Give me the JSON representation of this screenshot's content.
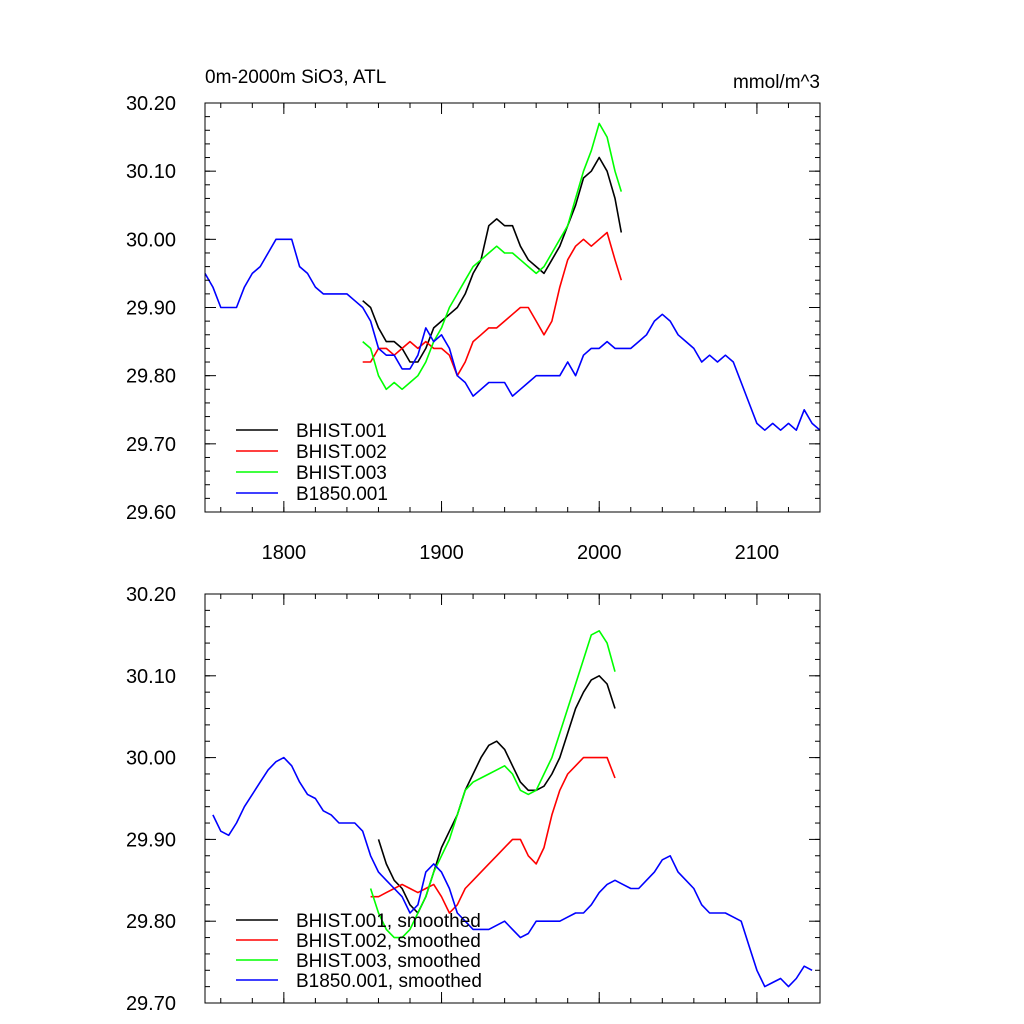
{
  "chart_data": [
    {
      "type": "line",
      "title_left": "0m-2000m SiO3, ATL",
      "title_right": "mmol/m^3",
      "xlim": [
        1750,
        2140
      ],
      "ylim": [
        29.6,
        30.2
      ],
      "x_ticks": [
        1800,
        1900,
        2000,
        2100
      ],
      "x_tick_labels": [
        "1800",
        "1900",
        "2000",
        "2100"
      ],
      "y_ticks": [
        29.6,
        29.7,
        29.8,
        29.9,
        30.0,
        30.1,
        30.2
      ],
      "y_tick_labels": [
        "29.60",
        "29.70",
        "29.80",
        "29.90",
        "30.00",
        "30.10",
        "30.20"
      ],
      "legend_position": "bottom-left",
      "series": [
        {
          "name": "BHIST.001",
          "color": "#000000",
          "x": [
            1850,
            1855,
            1860,
            1865,
            1870,
            1875,
            1880,
            1885,
            1890,
            1895,
            1900,
            1905,
            1910,
            1915,
            1920,
            1925,
            1930,
            1935,
            1940,
            1945,
            1950,
            1955,
            1960,
            1965,
            1970,
            1975,
            1980,
            1985,
            1990,
            1995,
            2000,
            2005,
            2010,
            2014
          ],
          "y": [
            29.91,
            29.9,
            29.87,
            29.85,
            29.85,
            29.84,
            29.82,
            29.82,
            29.84,
            29.87,
            29.88,
            29.89,
            29.9,
            29.92,
            29.95,
            29.97,
            30.02,
            30.03,
            30.02,
            30.02,
            29.99,
            29.97,
            29.96,
            29.95,
            29.97,
            29.99,
            30.02,
            30.05,
            30.09,
            30.1,
            30.12,
            30.1,
            30.06,
            30.01
          ]
        },
        {
          "name": "BHIST.002",
          "color": "#ff0000",
          "x": [
            1850,
            1855,
            1860,
            1865,
            1870,
            1875,
            1880,
            1885,
            1890,
            1895,
            1900,
            1905,
            1910,
            1915,
            1920,
            1925,
            1930,
            1935,
            1940,
            1945,
            1950,
            1955,
            1960,
            1965,
            1970,
            1975,
            1980,
            1985,
            1990,
            1995,
            2000,
            2005,
            2010,
            2014
          ],
          "y": [
            29.82,
            29.82,
            29.84,
            29.84,
            29.83,
            29.84,
            29.85,
            29.84,
            29.85,
            29.84,
            29.84,
            29.83,
            29.8,
            29.82,
            29.85,
            29.86,
            29.87,
            29.87,
            29.88,
            29.89,
            29.9,
            29.9,
            29.88,
            29.86,
            29.88,
            29.93,
            29.97,
            29.99,
            30.0,
            29.99,
            30.0,
            30.01,
            29.97,
            29.94
          ]
        },
        {
          "name": "BHIST.003",
          "color": "#00ff00",
          "x": [
            1850,
            1855,
            1860,
            1865,
            1870,
            1875,
            1880,
            1885,
            1890,
            1895,
            1900,
            1905,
            1910,
            1915,
            1920,
            1925,
            1930,
            1935,
            1940,
            1945,
            1950,
            1955,
            1960,
            1965,
            1970,
            1975,
            1980,
            1985,
            1990,
            1995,
            2000,
            2005,
            2010,
            2014
          ],
          "y": [
            29.85,
            29.84,
            29.8,
            29.78,
            29.79,
            29.78,
            29.79,
            29.8,
            29.82,
            29.85,
            29.87,
            29.9,
            29.92,
            29.94,
            29.96,
            29.97,
            29.98,
            29.99,
            29.98,
            29.98,
            29.97,
            29.96,
            29.95,
            29.96,
            29.98,
            30.0,
            30.02,
            30.06,
            30.1,
            30.13,
            30.17,
            30.15,
            30.1,
            30.07
          ]
        },
        {
          "name": "B1850.001",
          "color": "#0000ff",
          "x": [
            1750,
            1755,
            1760,
            1765,
            1770,
            1775,
            1780,
            1785,
            1790,
            1795,
            1800,
            1805,
            1810,
            1815,
            1820,
            1825,
            1830,
            1835,
            1840,
            1845,
            1850,
            1855,
            1860,
            1865,
            1870,
            1875,
            1880,
            1885,
            1890,
            1895,
            1900,
            1905,
            1910,
            1915,
            1920,
            1925,
            1930,
            1935,
            1940,
            1945,
            1950,
            1955,
            1960,
            1965,
            1970,
            1975,
            1980,
            1985,
            1990,
            1995,
            2000,
            2005,
            2010,
            2015,
            2020,
            2025,
            2030,
            2035,
            2040,
            2045,
            2050,
            2055,
            2060,
            2065,
            2070,
            2075,
            2080,
            2085,
            2090,
            2095,
            2100,
            2105,
            2110,
            2115,
            2120,
            2125,
            2130,
            2135,
            2140
          ],
          "y": [
            29.95,
            29.93,
            29.9,
            29.9,
            29.9,
            29.93,
            29.95,
            29.96,
            29.98,
            30.0,
            30.0,
            30.0,
            29.96,
            29.95,
            29.93,
            29.92,
            29.92,
            29.92,
            29.92,
            29.91,
            29.9,
            29.88,
            29.84,
            29.83,
            29.83,
            29.81,
            29.81,
            29.83,
            29.87,
            29.85,
            29.86,
            29.84,
            29.8,
            29.79,
            29.77,
            29.78,
            29.79,
            29.79,
            29.79,
            29.77,
            29.78,
            29.79,
            29.8,
            29.8,
            29.8,
            29.8,
            29.82,
            29.8,
            29.83,
            29.84,
            29.84,
            29.85,
            29.84,
            29.84,
            29.84,
            29.85,
            29.86,
            29.88,
            29.89,
            29.88,
            29.86,
            29.85,
            29.84,
            29.82,
            29.83,
            29.82,
            29.83,
            29.82,
            29.79,
            29.76,
            29.73,
            29.72,
            29.73,
            29.72,
            29.73,
            29.72,
            29.75,
            29.73,
            29.72
          ]
        }
      ]
    },
    {
      "type": "line",
      "xlim": [
        1750,
        2140
      ],
      "ylim": [
        29.7,
        30.2
      ],
      "x_ticks": [
        1800,
        1900,
        2000,
        2100
      ],
      "y_ticks": [
        29.7,
        29.8,
        29.9,
        30.0,
        30.1,
        30.2
      ],
      "y_tick_labels": [
        "29.70",
        "29.80",
        "29.90",
        "30.00",
        "30.10",
        "30.20"
      ],
      "legend_position": "bottom-left",
      "series": [
        {
          "name": "BHIST.001, smoothed",
          "color": "#000000",
          "x": [
            1860,
            1865,
            1870,
            1875,
            1880,
            1885,
            1890,
            1895,
            1900,
            1905,
            1910,
            1915,
            1920,
            1925,
            1930,
            1935,
            1940,
            1945,
            1950,
            1955,
            1960,
            1965,
            1970,
            1975,
            1980,
            1985,
            1990,
            1995,
            2000,
            2005,
            2010
          ],
          "y": [
            29.9,
            29.87,
            29.85,
            29.84,
            29.82,
            29.81,
            29.83,
            29.86,
            29.89,
            29.91,
            29.93,
            29.96,
            29.98,
            30.0,
            30.015,
            30.02,
            30.01,
            29.99,
            29.97,
            29.96,
            29.96,
            29.965,
            29.98,
            30.0,
            30.03,
            30.06,
            30.08,
            30.095,
            30.1,
            30.09,
            30.06
          ]
        },
        {
          "name": "BHIST.002, smoothed",
          "color": "#ff0000",
          "x": [
            1855,
            1860,
            1865,
            1870,
            1875,
            1880,
            1885,
            1890,
            1895,
            1900,
            1905,
            1910,
            1915,
            1920,
            1925,
            1930,
            1935,
            1940,
            1945,
            1950,
            1955,
            1960,
            1965,
            1970,
            1975,
            1980,
            1985,
            1990,
            1995,
            2000,
            2005,
            2010
          ],
          "y": [
            29.83,
            29.83,
            29.835,
            29.84,
            29.845,
            29.84,
            29.835,
            29.84,
            29.845,
            29.83,
            29.81,
            29.82,
            29.84,
            29.85,
            29.86,
            29.87,
            29.88,
            29.89,
            29.9,
            29.9,
            29.88,
            29.87,
            29.89,
            29.93,
            29.96,
            29.98,
            29.99,
            30.0,
            30.0,
            30.0,
            30.0,
            29.975
          ]
        },
        {
          "name": "BHIST.003, smoothed",
          "color": "#00ff00",
          "x": [
            1855,
            1860,
            1865,
            1870,
            1875,
            1880,
            1885,
            1890,
            1895,
            1900,
            1905,
            1910,
            1915,
            1920,
            1925,
            1930,
            1935,
            1940,
            1945,
            1950,
            1955,
            1960,
            1965,
            1970,
            1975,
            1980,
            1985,
            1990,
            1995,
            2000,
            2005,
            2010
          ],
          "y": [
            29.84,
            29.81,
            29.79,
            29.78,
            29.78,
            29.79,
            29.81,
            29.83,
            29.86,
            29.88,
            29.9,
            29.93,
            29.96,
            29.97,
            29.975,
            29.98,
            29.985,
            29.99,
            29.98,
            29.96,
            29.955,
            29.96,
            29.98,
            30.0,
            30.03,
            30.06,
            30.09,
            30.12,
            30.15,
            30.155,
            30.14,
            30.105
          ]
        },
        {
          "name": "B1850.001, smoothed",
          "color": "#0000ff",
          "x": [
            1755,
            1760,
            1765,
            1770,
            1775,
            1780,
            1785,
            1790,
            1795,
            1800,
            1805,
            1810,
            1815,
            1820,
            1825,
            1830,
            1835,
            1840,
            1845,
            1850,
            1855,
            1860,
            1865,
            1870,
            1875,
            1880,
            1885,
            1890,
            1895,
            1900,
            1905,
            1910,
            1915,
            1920,
            1925,
            1930,
            1935,
            1940,
            1945,
            1950,
            1955,
            1960,
            1965,
            1970,
            1975,
            1980,
            1985,
            1990,
            1995,
            2000,
            2005,
            2010,
            2015,
            2020,
            2025,
            2030,
            2035,
            2040,
            2045,
            2050,
            2055,
            2060,
            2065,
            2070,
            2075,
            2080,
            2085,
            2090,
            2095,
            2100,
            2105,
            2110,
            2115,
            2120,
            2125,
            2130,
            2135
          ],
          "y": [
            29.93,
            29.91,
            29.905,
            29.92,
            29.94,
            29.955,
            29.97,
            29.985,
            29.995,
            30.0,
            29.99,
            29.97,
            29.955,
            29.95,
            29.935,
            29.93,
            29.92,
            29.92,
            29.92,
            29.91,
            29.88,
            29.86,
            29.85,
            29.84,
            29.83,
            29.81,
            29.82,
            29.86,
            29.87,
            29.86,
            29.84,
            29.81,
            29.8,
            29.79,
            29.79,
            29.79,
            29.795,
            29.8,
            29.79,
            29.78,
            29.785,
            29.8,
            29.8,
            29.8,
            29.8,
            29.805,
            29.81,
            29.81,
            29.82,
            29.835,
            29.845,
            29.85,
            29.845,
            29.84,
            29.84,
            29.85,
            29.86,
            29.875,
            29.88,
            29.86,
            29.85,
            29.84,
            29.82,
            29.81,
            29.81,
            29.81,
            29.805,
            29.8,
            29.77,
            29.74,
            29.72,
            29.725,
            29.73,
            29.72,
            29.73,
            29.745,
            29.74
          ]
        }
      ]
    }
  ]
}
